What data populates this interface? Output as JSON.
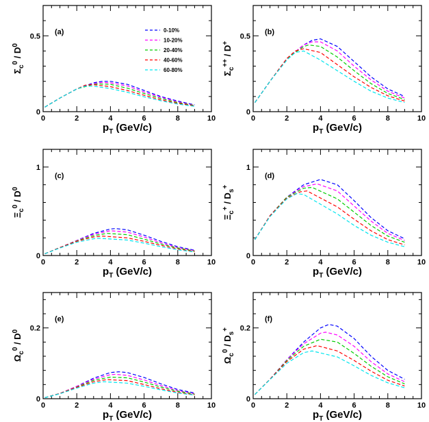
{
  "chart_data": [
    {
      "type": "line",
      "panel_label": "(a)",
      "xlabel": "pT (GeV/c)",
      "ylabel": "Σc0 / D0",
      "xlim": [
        0,
        10
      ],
      "ylim": [
        0,
        0.7
      ],
      "xticks": [
        0,
        2,
        4,
        6,
        8,
        10
      ],
      "yticks": [
        0,
        0.5
      ],
      "legend": "top-right",
      "series": [
        {
          "name": "0-10%",
          "color": "#0000ff",
          "x": [
            0.1,
            1,
            2,
            3,
            3.5,
            4,
            5,
            6,
            7,
            8,
            9
          ],
          "y": [
            0.03,
            0.09,
            0.15,
            0.19,
            0.2,
            0.2,
            0.18,
            0.14,
            0.1,
            0.07,
            0.045
          ]
        },
        {
          "name": "10-20%",
          "color": "#ff00ff",
          "x": [
            0.1,
            1,
            2,
            3,
            3.5,
            4,
            5,
            6,
            7,
            8,
            9
          ],
          "y": [
            0.03,
            0.09,
            0.15,
            0.185,
            0.193,
            0.19,
            0.17,
            0.13,
            0.095,
            0.065,
            0.042
          ]
        },
        {
          "name": "20-40%",
          "color": "#00cc00",
          "x": [
            0.1,
            1,
            2,
            3,
            3.3,
            4,
            5,
            6,
            7,
            8,
            9
          ],
          "y": [
            0.03,
            0.09,
            0.15,
            0.18,
            0.183,
            0.18,
            0.155,
            0.12,
            0.087,
            0.06,
            0.04
          ]
        },
        {
          "name": "40-60%",
          "color": "#ff0000",
          "x": [
            0.1,
            1,
            2,
            2.5,
            3,
            4,
            5,
            6,
            7,
            8,
            9
          ],
          "y": [
            0.03,
            0.09,
            0.15,
            0.175,
            0.178,
            0.165,
            0.14,
            0.108,
            0.078,
            0.055,
            0.038
          ]
        },
        {
          "name": "60-80%",
          "color": "#00e5ee",
          "x": [
            0.1,
            1,
            2,
            2.5,
            3,
            4,
            5,
            6,
            7,
            8,
            9
          ],
          "y": [
            0.03,
            0.09,
            0.15,
            0.168,
            0.168,
            0.152,
            0.128,
            0.098,
            0.072,
            0.05,
            0.035
          ]
        }
      ]
    },
    {
      "type": "line",
      "panel_label": "(b)",
      "xlabel": "pT (GeV/c)",
      "ylabel": "Σc++ / D+",
      "xlim": [
        0,
        10
      ],
      "ylim": [
        0,
        0.7
      ],
      "xticks": [
        0,
        2,
        4,
        6,
        8,
        10
      ],
      "yticks": [
        0,
        0.5
      ],
      "series": [
        {
          "name": "0-10%",
          "color": "#0000ff",
          "x": [
            0.1,
            1,
            2,
            3,
            3.5,
            4,
            5,
            6,
            7,
            8,
            9
          ],
          "y": [
            0.06,
            0.2,
            0.35,
            0.44,
            0.47,
            0.48,
            0.43,
            0.33,
            0.23,
            0.15,
            0.1
          ]
        },
        {
          "name": "10-20%",
          "color": "#ff00ff",
          "x": [
            0.1,
            1,
            2,
            3,
            3.5,
            4,
            5,
            6,
            7,
            8,
            9
          ],
          "y": [
            0.06,
            0.2,
            0.35,
            0.44,
            0.46,
            0.46,
            0.4,
            0.3,
            0.21,
            0.135,
            0.09
          ]
        },
        {
          "name": "20-40%",
          "color": "#00cc00",
          "x": [
            0.1,
            1,
            2,
            3,
            3.3,
            4,
            5,
            6,
            7,
            8,
            9
          ],
          "y": [
            0.06,
            0.2,
            0.35,
            0.43,
            0.44,
            0.43,
            0.36,
            0.27,
            0.185,
            0.12,
            0.08
          ]
        },
        {
          "name": "40-60%",
          "color": "#ff0000",
          "x": [
            0.1,
            1,
            2,
            2.5,
            3,
            4,
            5,
            6,
            7,
            8,
            9
          ],
          "y": [
            0.06,
            0.2,
            0.35,
            0.4,
            0.415,
            0.39,
            0.31,
            0.23,
            0.16,
            0.105,
            0.07
          ]
        },
        {
          "name": "60-80%",
          "color": "#00e5ee",
          "x": [
            0.1,
            1,
            2,
            2.5,
            3,
            4,
            5,
            6,
            7,
            8,
            9
          ],
          "y": [
            0.06,
            0.2,
            0.34,
            0.39,
            0.4,
            0.34,
            0.27,
            0.2,
            0.135,
            0.09,
            0.06
          ]
        }
      ]
    },
    {
      "type": "line",
      "panel_label": "(c)",
      "xlabel": "pT (GeV/c)",
      "ylabel": "Ξc0 / D0",
      "xlim": [
        0,
        10
      ],
      "ylim": [
        0,
        1.2
      ],
      "xticks": [
        0,
        2,
        4,
        6,
        8,
        10
      ],
      "yticks": [
        0,
        1
      ],
      "series": [
        {
          "name": "0-10%",
          "color": "#0000ff",
          "x": [
            0.1,
            1,
            2,
            3,
            4,
            4.3,
            5,
            6,
            7,
            8,
            9
          ],
          "y": [
            0.02,
            0.09,
            0.17,
            0.25,
            0.3,
            0.305,
            0.29,
            0.23,
            0.16,
            0.1,
            0.06
          ]
        },
        {
          "name": "10-20%",
          "color": "#ff00ff",
          "x": [
            0.1,
            1,
            2,
            3,
            4,
            5,
            6,
            7,
            8,
            9
          ],
          "y": [
            0.02,
            0.09,
            0.17,
            0.24,
            0.28,
            0.265,
            0.21,
            0.145,
            0.09,
            0.055
          ]
        },
        {
          "name": "20-40%",
          "color": "#00cc00",
          "x": [
            0.1,
            1,
            2,
            3,
            3.8,
            5,
            6,
            7,
            8,
            9
          ],
          "y": [
            0.02,
            0.09,
            0.165,
            0.225,
            0.25,
            0.235,
            0.185,
            0.13,
            0.085,
            0.05
          ]
        },
        {
          "name": "40-60%",
          "color": "#ff0000",
          "x": [
            0.1,
            1,
            2,
            3,
            3.5,
            5,
            6,
            7,
            8,
            9
          ],
          "y": [
            0.02,
            0.09,
            0.16,
            0.21,
            0.22,
            0.2,
            0.16,
            0.115,
            0.075,
            0.045
          ]
        },
        {
          "name": "60-80%",
          "color": "#00e5ee",
          "x": [
            0.1,
            1,
            2,
            3,
            3.3,
            5,
            6,
            7,
            8,
            9
          ],
          "y": [
            0.02,
            0.085,
            0.15,
            0.19,
            0.195,
            0.175,
            0.14,
            0.1,
            0.065,
            0.04
          ]
        }
      ]
    },
    {
      "type": "line",
      "panel_label": "(d)",
      "xlabel": "pT (GeV/c)",
      "ylabel": "Ξc+ / Ds+",
      "xlim": [
        0,
        10
      ],
      "ylim": [
        0,
        1.2
      ],
      "xticks": [
        0,
        2,
        4,
        6,
        8,
        10
      ],
      "yticks": [
        0,
        1
      ],
      "series": [
        {
          "name": "0-10%",
          "color": "#0000ff",
          "x": [
            0.1,
            1,
            2,
            3,
            4,
            5,
            6,
            7,
            8,
            9
          ],
          "y": [
            0.18,
            0.45,
            0.66,
            0.8,
            0.86,
            0.8,
            0.62,
            0.43,
            0.28,
            0.19
          ]
        },
        {
          "name": "10-20%",
          "color": "#ff00ff",
          "x": [
            0.1,
            1,
            2,
            3,
            3.8,
            5,
            6,
            7,
            8,
            9
          ],
          "y": [
            0.18,
            0.45,
            0.66,
            0.78,
            0.81,
            0.73,
            0.56,
            0.39,
            0.25,
            0.17
          ]
        },
        {
          "name": "20-40%",
          "color": "#00cc00",
          "x": [
            0.1,
            1,
            2,
            3,
            3.5,
            5,
            6,
            7,
            8,
            9
          ],
          "y": [
            0.18,
            0.45,
            0.66,
            0.76,
            0.77,
            0.64,
            0.49,
            0.34,
            0.22,
            0.15
          ]
        },
        {
          "name": "40-60%",
          "color": "#ff0000",
          "x": [
            0.1,
            1,
            2,
            2.8,
            3.2,
            5,
            6,
            7,
            8,
            9
          ],
          "y": [
            0.18,
            0.45,
            0.65,
            0.72,
            0.73,
            0.55,
            0.41,
            0.28,
            0.18,
            0.12
          ]
        },
        {
          "name": "60-80%",
          "color": "#00e5ee",
          "x": [
            0.1,
            1,
            2,
            2.6,
            3,
            5,
            6,
            7,
            8,
            9
          ],
          "y": [
            0.18,
            0.44,
            0.64,
            0.7,
            0.69,
            0.47,
            0.34,
            0.23,
            0.15,
            0.1
          ]
        }
      ]
    },
    {
      "type": "line",
      "panel_label": "(e)",
      "xlabel": "pT (GeV/c)",
      "ylabel": "Ωc0 / D0",
      "xlim": [
        0,
        10
      ],
      "ylim": [
        0,
        0.3
      ],
      "xticks": [
        0,
        2,
        4,
        6,
        8,
        10
      ],
      "yticks": [
        0,
        0.2
      ],
      "series": [
        {
          "name": "0-10%",
          "color": "#0000ff",
          "x": [
            0.1,
            1,
            2,
            3,
            4,
            4.5,
            5,
            6,
            7,
            8,
            9
          ],
          "y": [
            0.003,
            0.015,
            0.035,
            0.058,
            0.074,
            0.076,
            0.074,
            0.06,
            0.042,
            0.026,
            0.016
          ]
        },
        {
          "name": "10-20%",
          "color": "#ff00ff",
          "x": [
            0.1,
            1,
            2,
            3,
            4,
            4.3,
            5,
            6,
            7,
            8,
            9
          ],
          "y": [
            0.003,
            0.015,
            0.035,
            0.055,
            0.068,
            0.069,
            0.066,
            0.053,
            0.037,
            0.023,
            0.014
          ]
        },
        {
          "name": "20-40%",
          "color": "#00cc00",
          "x": [
            0.1,
            1,
            2,
            3,
            4,
            5,
            6,
            7,
            8,
            9
          ],
          "y": [
            0.003,
            0.015,
            0.033,
            0.052,
            0.061,
            0.059,
            0.047,
            0.033,
            0.021,
            0.013
          ]
        },
        {
          "name": "40-60%",
          "color": "#ff0000",
          "x": [
            0.1,
            1,
            2,
            3,
            3.8,
            5,
            6,
            7,
            8,
            9
          ],
          "y": [
            0.003,
            0.015,
            0.032,
            0.048,
            0.054,
            0.051,
            0.04,
            0.028,
            0.018,
            0.011
          ]
        },
        {
          "name": "60-80%",
          "color": "#00e5ee",
          "x": [
            0.1,
            1,
            2,
            3,
            3.6,
            5,
            6,
            7,
            8,
            9
          ],
          "y": [
            0.003,
            0.014,
            0.03,
            0.044,
            0.048,
            0.044,
            0.035,
            0.025,
            0.016,
            0.01
          ]
        }
      ]
    },
    {
      "type": "line",
      "panel_label": "(f)",
      "xlabel": "pT (GeV/c)",
      "ylabel": "Ωc0 / Ds+",
      "xlim": [
        0,
        10
      ],
      "ylim": [
        0,
        0.3
      ],
      "xticks": [
        0,
        2,
        4,
        6,
        8,
        10
      ],
      "yticks": [
        0,
        0.2
      ],
      "series": [
        {
          "name": "0-10%",
          "color": "#0000ff",
          "x": [
            0.1,
            1,
            2,
            3,
            4,
            4.5,
            5,
            6,
            7,
            8,
            9
          ],
          "y": [
            0.012,
            0.055,
            0.11,
            0.16,
            0.2,
            0.21,
            0.205,
            0.17,
            0.12,
            0.08,
            0.055
          ]
        },
        {
          "name": "10-20%",
          "color": "#ff00ff",
          "x": [
            0.1,
            1,
            2,
            3,
            4,
            4.3,
            5,
            6,
            7,
            8,
            9
          ],
          "y": [
            0.012,
            0.055,
            0.11,
            0.155,
            0.185,
            0.188,
            0.18,
            0.148,
            0.105,
            0.07,
            0.048
          ]
        },
        {
          "name": "20-40%",
          "color": "#00cc00",
          "x": [
            0.1,
            1,
            2,
            3,
            4,
            5,
            6,
            7,
            8,
            9
          ],
          "y": [
            0.012,
            0.055,
            0.108,
            0.148,
            0.168,
            0.16,
            0.128,
            0.092,
            0.062,
            0.042
          ]
        },
        {
          "name": "40-60%",
          "color": "#ff0000",
          "x": [
            0.1,
            1,
            2,
            3,
            3.8,
            5,
            6,
            7,
            8,
            9
          ],
          "y": [
            0.012,
            0.055,
            0.105,
            0.14,
            0.15,
            0.135,
            0.108,
            0.078,
            0.052,
            0.036
          ]
        },
        {
          "name": "60-80%",
          "color": "#00e5ee",
          "x": [
            0.1,
            1,
            2,
            3,
            3.5,
            5,
            6,
            7,
            8,
            9
          ],
          "y": [
            0.012,
            0.054,
            0.1,
            0.13,
            0.135,
            0.118,
            0.093,
            0.066,
            0.045,
            0.031
          ]
        }
      ]
    }
  ]
}
